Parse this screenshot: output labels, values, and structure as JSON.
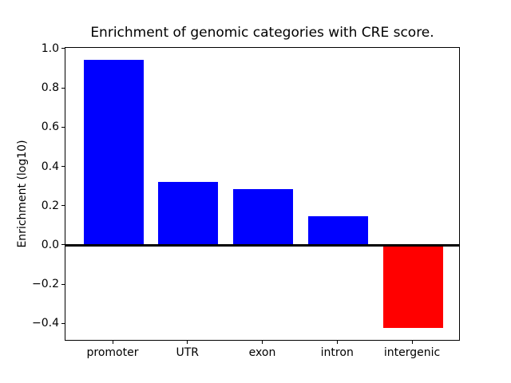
{
  "chart_data": {
    "type": "bar",
    "title": "Enrichment of genomic categories with CRE score.",
    "ylabel": "Enrichment (log10)",
    "xlabel": "",
    "categories": [
      "promoter",
      "UTR",
      "exon",
      "intron",
      "intergenic"
    ],
    "values": [
      0.945,
      0.325,
      0.29,
      0.15,
      -0.42
    ],
    "bar_colors": [
      "#0000ff",
      "#0000ff",
      "#0000ff",
      "#0000ff",
      "#ff0000"
    ],
    "positive_color": "#0000ff",
    "negative_color": "#ff0000",
    "yticks": [
      1.0,
      0.8,
      0.6,
      0.4,
      0.2,
      0.0,
      -0.2,
      -0.4
    ],
    "ylim": [
      -0.488,
      1.008
    ],
    "grid": false,
    "legend_position": "none",
    "zero_line": true,
    "background_color": "#ffffff"
  }
}
